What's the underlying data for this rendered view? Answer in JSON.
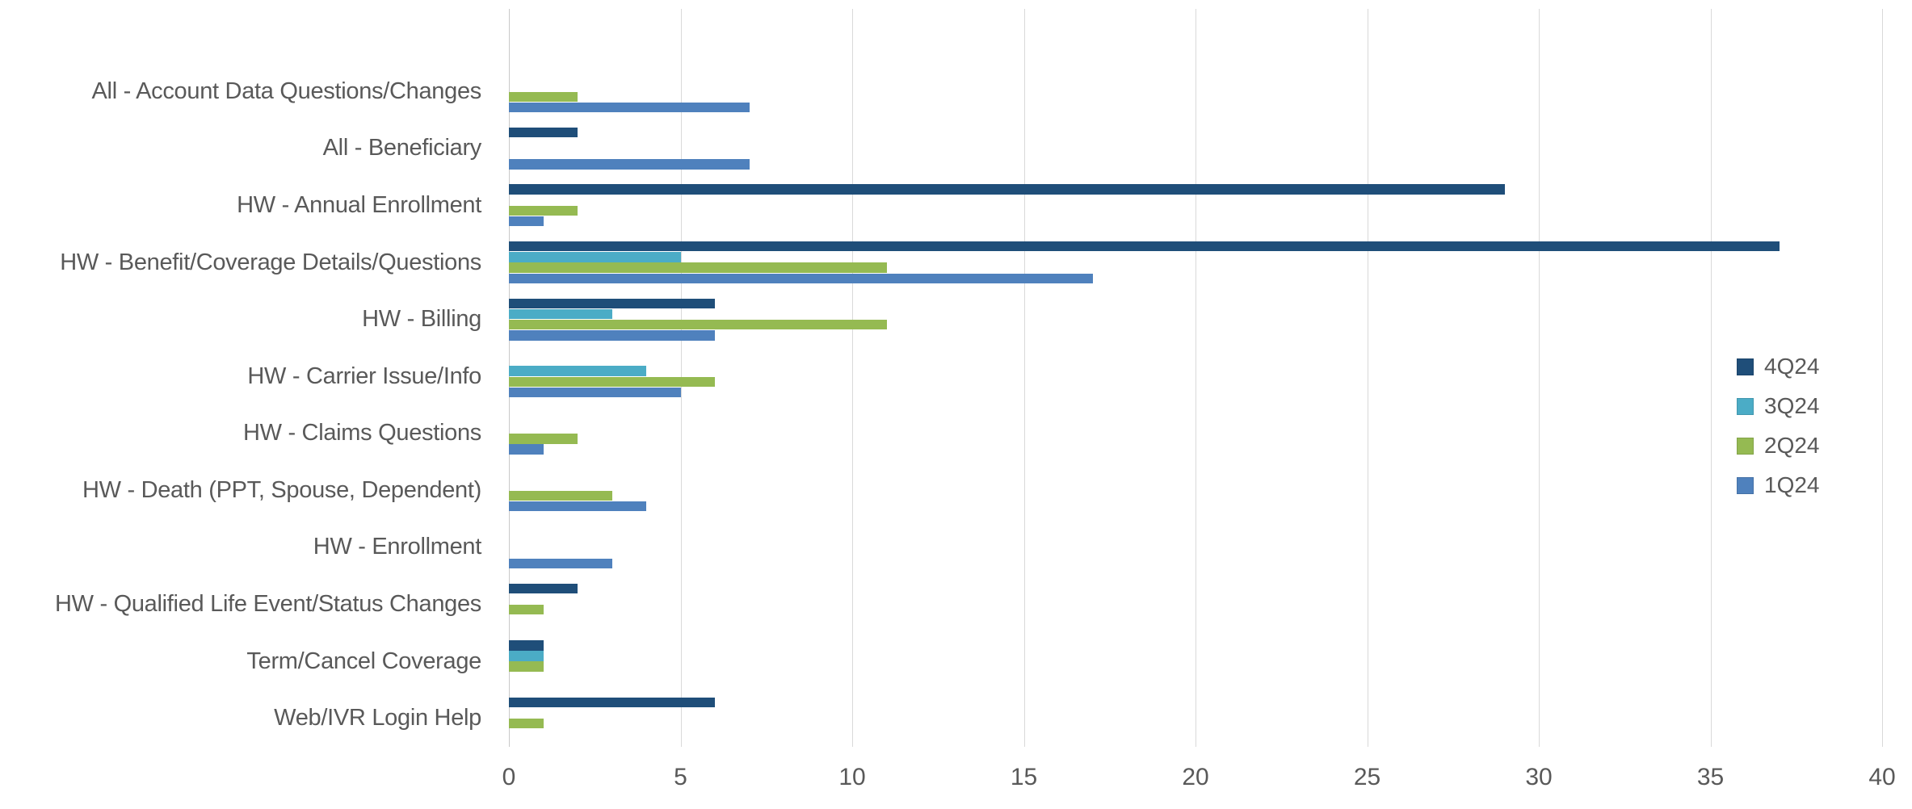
{
  "chart_data": {
    "type": "bar",
    "orientation": "horizontal",
    "title": "",
    "xlabel": "",
    "ylabel": "",
    "grid": "vertical",
    "categories": [
      "All - Account Data Questions/Changes",
      "All - Beneficiary",
      "HW - Annual Enrollment",
      "HW - Benefit/Coverage Details/Questions",
      "HW - Billing",
      "HW - Carrier Issue/Info",
      "HW - Claims Questions",
      "HW - Death (PPT, Spouse, Dependent)",
      "HW - Enrollment",
      "HW - Qualified Life Event/Status Changes",
      "Term/Cancel Coverage",
      "Web/IVR Login Help"
    ],
    "series": [
      {
        "name": "4Q24",
        "color": "#1F4E79",
        "values": [
          0,
          2,
          29,
          37,
          6,
          0,
          0,
          0,
          0,
          2,
          1,
          6
        ]
      },
      {
        "name": "3Q24",
        "color": "#4BACC6",
        "values": [
          0,
          0,
          0,
          5,
          3,
          4,
          0,
          0,
          0,
          0,
          1,
          0
        ]
      },
      {
        "name": "2Q24",
        "color": "#95BA52",
        "values": [
          2,
          0,
          2,
          11,
          11,
          6,
          2,
          3,
          0,
          1,
          1,
          1
        ]
      },
      {
        "name": "1Q24",
        "color": "#4F81BD",
        "values": [
          7,
          7,
          1,
          17,
          6,
          5,
          1,
          4,
          3,
          0,
          0,
          0
        ]
      }
    ],
    "x_axis": {
      "min": 0,
      "max": 40,
      "tick_step": 5,
      "tick_labels": [
        "0",
        "5",
        "10",
        "15",
        "20",
        "25",
        "30",
        "35",
        "40"
      ]
    },
    "legend": {
      "position": "right",
      "entries": [
        "4Q24",
        "3Q24",
        "2Q24",
        "1Q24"
      ]
    },
    "colors": {
      "grid": "#d9d9d9",
      "axis_text": "#595959",
      "category_text": "#595959",
      "background": "#ffffff"
    }
  }
}
